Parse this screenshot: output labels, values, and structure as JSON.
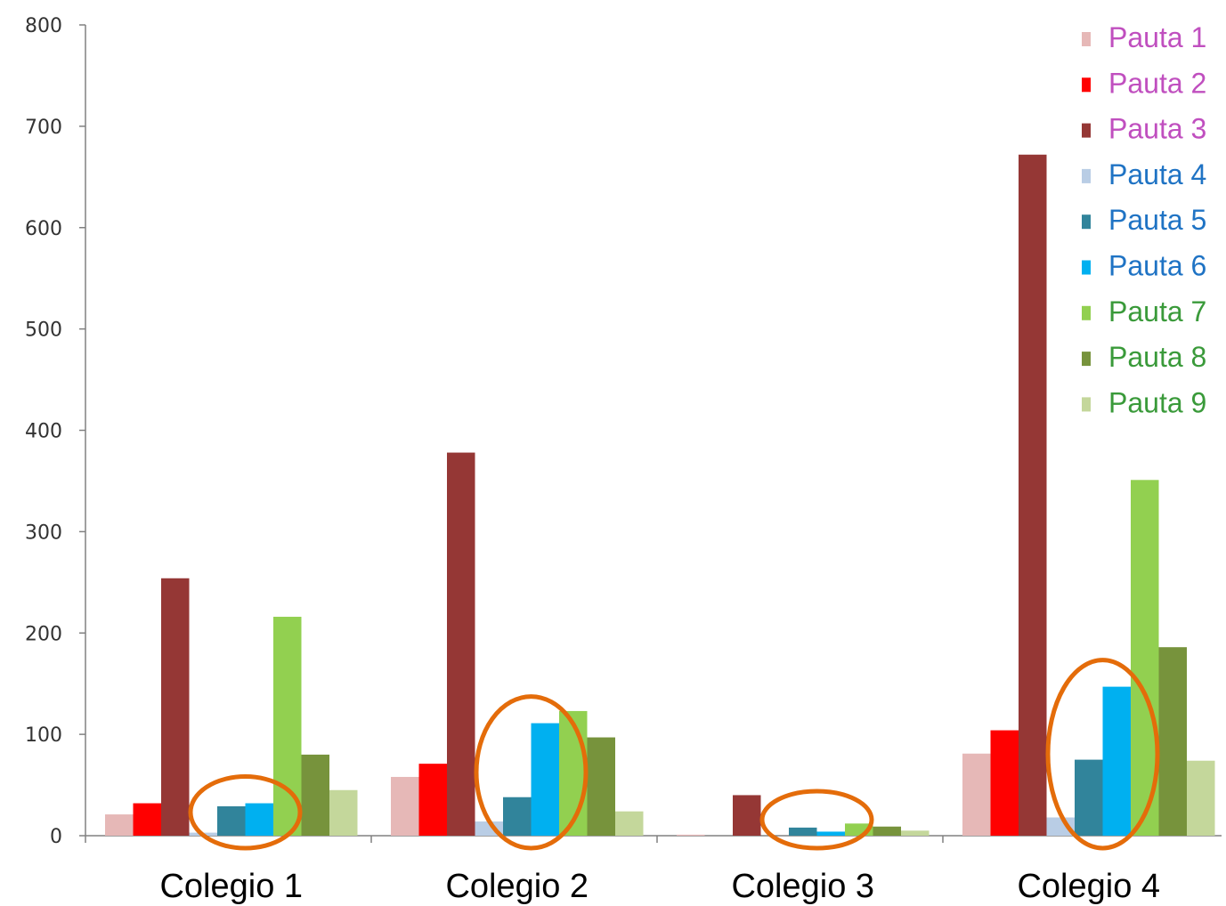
{
  "chart_data": {
    "type": "bar",
    "categories": [
      "Colegio 1",
      "Colegio 2",
      "Colegio 3",
      "Colegio 4"
    ],
    "ylim": [
      0,
      800
    ],
    "yticks": [
      0,
      100,
      200,
      300,
      400,
      500,
      600,
      700,
      800
    ],
    "grid": false,
    "legend_position": "top-right",
    "series": [
      {
        "name": "Pauta 1",
        "color": "#E6B8B7",
        "label_color": "#C04FBF",
        "values": [
          21,
          58,
          1,
          81
        ]
      },
      {
        "name": "Pauta 2",
        "color": "#FF0000",
        "label_color": "#C04FBF",
        "values": [
          32,
          71,
          0,
          104
        ]
      },
      {
        "name": "Pauta 3",
        "color": "#953735",
        "label_color": "#C04FBF",
        "values": [
          254,
          378,
          40,
          672
        ]
      },
      {
        "name": "Pauta 4",
        "color": "#B9CDE5",
        "label_color": "#1F73C4",
        "values": [
          3,
          14,
          0,
          18
        ]
      },
      {
        "name": "Pauta 5",
        "color": "#31849B",
        "label_color": "#1F73C4",
        "values": [
          29,
          38,
          8,
          75
        ]
      },
      {
        "name": "Pauta 6",
        "color": "#00B0F0",
        "label_color": "#1F73C4",
        "values": [
          32,
          111,
          4,
          147
        ]
      },
      {
        "name": "Pauta 7",
        "color": "#92D050",
        "label_color": "#3A9A3A",
        "values": [
          216,
          123,
          12,
          351
        ]
      },
      {
        "name": "Pauta 8",
        "color": "#77933C",
        "label_color": "#3A9A3A",
        "values": [
          80,
          97,
          9,
          186
        ]
      },
      {
        "name": "Pauta 9",
        "color": "#C4D79B",
        "label_color": "#3A9A3A",
        "values": [
          45,
          24,
          5,
          74
        ]
      }
    ],
    "highlight_color": "#E46C0A",
    "highlights": [
      {
        "category": "Colegio 1",
        "series": [
          "Pauta 5",
          "Pauta 6"
        ]
      },
      {
        "category": "Colegio 2",
        "series": [
          "Pauta 5",
          "Pauta 6"
        ]
      },
      {
        "category": "Colegio 3",
        "series": [
          "Pauta 5",
          "Pauta 6"
        ]
      },
      {
        "category": "Colegio 4",
        "series": [
          "Pauta 5",
          "Pauta 6"
        ]
      }
    ]
  }
}
